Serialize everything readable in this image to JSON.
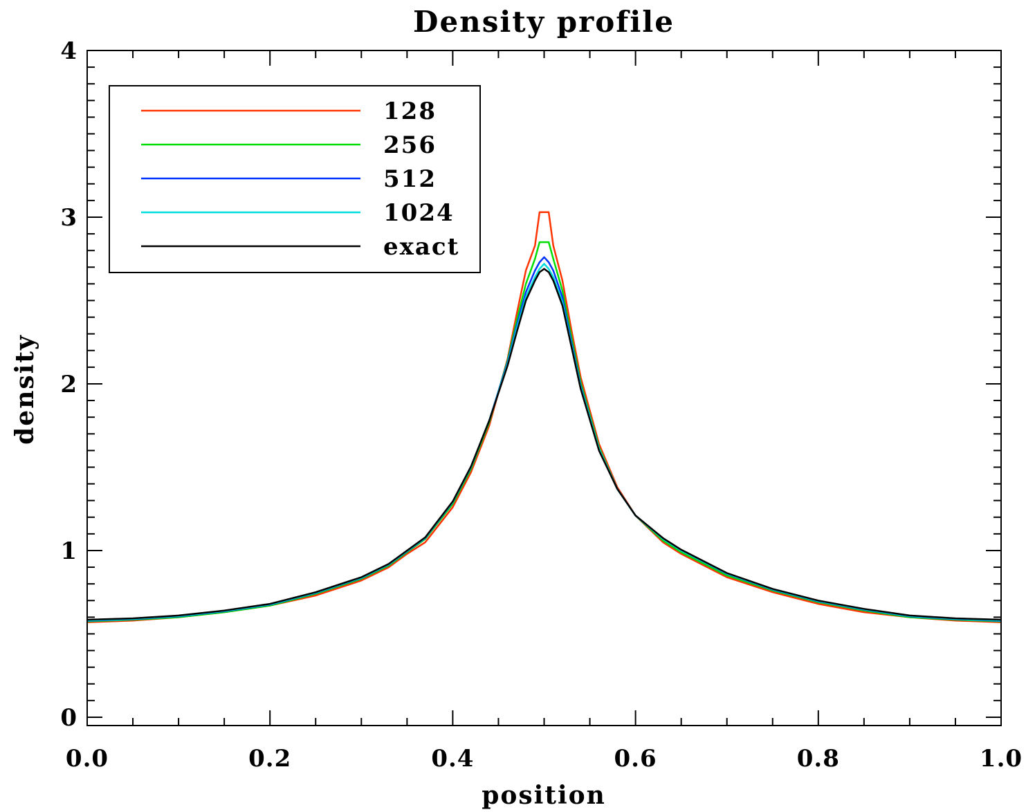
{
  "chart_data": {
    "type": "line",
    "title": "Density profile",
    "xlabel": "position",
    "ylabel": "density",
    "xlim": [
      0.0,
      1.0
    ],
    "ylim": [
      -0.05,
      4.0
    ],
    "xticks": [
      0.0,
      0.2,
      0.4,
      0.6,
      0.8,
      1.0
    ],
    "xtick_labels": [
      "0.0",
      "0.2",
      "0.4",
      "0.6",
      "0.8",
      "1.0"
    ],
    "yticks": [
      0,
      1,
      2,
      3,
      4
    ],
    "ytick_labels": [
      "0",
      "1",
      "2",
      "3",
      "4"
    ],
    "grid": false,
    "legend_position": "top-left",
    "x": [
      0.0,
      0.05,
      0.1,
      0.15,
      0.2,
      0.25,
      0.3,
      0.33,
      0.35,
      0.37,
      0.4,
      0.42,
      0.44,
      0.46,
      0.47,
      0.48,
      0.49,
      0.495,
      0.5,
      0.505,
      0.51,
      0.52,
      0.53,
      0.54,
      0.56,
      0.58,
      0.6,
      0.63,
      0.65,
      0.7,
      0.75,
      0.8,
      0.85,
      0.9,
      0.95,
      1.0
    ],
    "series": [
      {
        "name": "128",
        "color": "#ff3300",
        "values": [
          0.57,
          0.58,
          0.6,
          0.63,
          0.67,
          0.73,
          0.82,
          0.9,
          0.98,
          1.05,
          1.26,
          1.47,
          1.75,
          2.15,
          2.42,
          2.68,
          2.83,
          3.03,
          3.03,
          3.03,
          2.83,
          2.62,
          2.32,
          2.04,
          1.64,
          1.38,
          1.21,
          1.05,
          0.98,
          0.84,
          0.75,
          0.68,
          0.63,
          0.6,
          0.58,
          0.57
        ]
      },
      {
        "name": "256",
        "color": "#00dd00",
        "values": [
          0.575,
          0.585,
          0.6,
          0.63,
          0.67,
          0.74,
          0.83,
          0.91,
          0.99,
          1.07,
          1.28,
          1.49,
          1.77,
          2.14,
          2.38,
          2.6,
          2.75,
          2.85,
          2.85,
          2.85,
          2.75,
          2.56,
          2.28,
          2.01,
          1.62,
          1.37,
          1.21,
          1.06,
          0.99,
          0.85,
          0.76,
          0.69,
          0.64,
          0.6,
          0.585,
          0.575
        ]
      },
      {
        "name": "512",
        "color": "#0033ff",
        "values": [
          0.578,
          0.588,
          0.605,
          0.635,
          0.675,
          0.745,
          0.835,
          0.915,
          0.995,
          1.075,
          1.29,
          1.5,
          1.78,
          2.13,
          2.35,
          2.55,
          2.68,
          2.73,
          2.76,
          2.73,
          2.68,
          2.52,
          2.25,
          1.99,
          1.61,
          1.37,
          1.21,
          1.07,
          1.0,
          0.86,
          0.765,
          0.695,
          0.645,
          0.605,
          0.588,
          0.578
        ]
      },
      {
        "name": "1024",
        "color": "#00dddd",
        "values": [
          0.58,
          0.59,
          0.607,
          0.637,
          0.677,
          0.747,
          0.837,
          0.917,
          0.997,
          1.077,
          1.292,
          1.502,
          1.78,
          2.12,
          2.33,
          2.52,
          2.64,
          2.69,
          2.72,
          2.69,
          2.64,
          2.49,
          2.23,
          1.98,
          1.61,
          1.37,
          1.21,
          1.07,
          1.0,
          0.862,
          0.767,
          0.697,
          0.647,
          0.607,
          0.59,
          0.58
        ]
      },
      {
        "name": "exact",
        "color": "#000000",
        "values": [
          0.585,
          0.593,
          0.61,
          0.64,
          0.68,
          0.75,
          0.84,
          0.92,
          1.0,
          1.08,
          1.295,
          1.505,
          1.78,
          2.11,
          2.31,
          2.5,
          2.62,
          2.67,
          2.69,
          2.67,
          2.62,
          2.47,
          2.22,
          1.97,
          1.6,
          1.37,
          1.21,
          1.075,
          1.005,
          0.865,
          0.77,
          0.7,
          0.65,
          0.61,
          0.593,
          0.585
        ]
      }
    ]
  }
}
